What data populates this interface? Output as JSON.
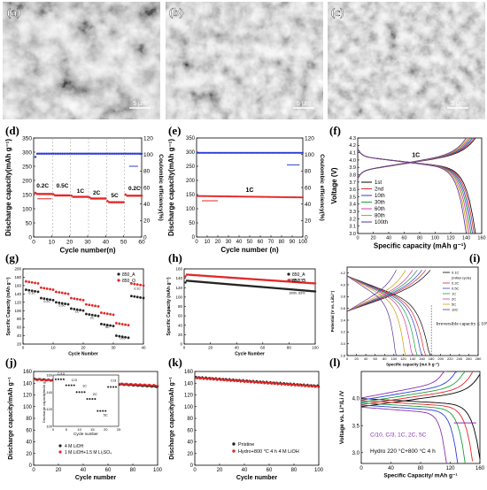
{
  "panels": [
    {
      "label": "(a)",
      "type": "sem-image",
      "scale_bar": "5 μm"
    },
    {
      "label": "(b)",
      "type": "sem-image",
      "scale_bar": "5 μm"
    },
    {
      "label": "(c)",
      "type": "sem-image",
      "scale_bar": "5 μm"
    },
    {
      "label": "(d)"
    },
    {
      "label": "(e)"
    },
    {
      "label": "(f)"
    },
    {
      "label": "(g)"
    },
    {
      "label": "(h)"
    },
    {
      "label": "(i)"
    },
    {
      "label": "(j)"
    },
    {
      "label": "(k)"
    },
    {
      "label": "(l)"
    }
  ],
  "chart_data": [
    {
      "panel": "(d)",
      "type": "scatter",
      "xlabel": "Cycle number(n)",
      "ylabel": "Discharge capacity(mAh g⁻¹)",
      "y2label": "Coulombic efficiency(%)",
      "xlim": [
        0,
        60
      ],
      "ylim": [
        0,
        350
      ],
      "y2lim": [
        0,
        120
      ],
      "xticks": [
        "0",
        "10",
        "20",
        "30",
        "40",
        "50",
        "60"
      ],
      "yticks": [
        "0",
        "50",
        "100",
        "150",
        "200",
        "250",
        "300",
        "350"
      ],
      "y2ticks": [
        "0",
        "20",
        "40",
        "60",
        "80",
        "100",
        "120"
      ],
      "annotations": [
        "0.2C",
        "0.5C",
        "1C",
        "2C",
        "5C",
        "0.2C"
      ],
      "series": [
        {
          "color": "#e32626",
          "segments": [
            {
              "x": [
                1,
                10
              ],
              "y": 152
            },
            {
              "x": [
                11,
                20
              ],
              "y": 147
            },
            {
              "x": [
                21,
                30
              ],
              "y": 142
            },
            {
              "x": [
                31,
                40
              ],
              "y": 136
            },
            {
              "x": [
                41,
                50
              ],
              "y": 123
            },
            {
              "x": [
                51,
                60
              ],
              "y": 146
            }
          ]
        },
        {
          "color": "#2b3fd6",
          "axis": "right",
          "y": 101
        }
      ]
    },
    {
      "panel": "(e)",
      "type": "scatter",
      "xlabel": "Cycle number (n)",
      "ylabel": "Discharge capacity(mAh g⁻¹)",
      "y2label": "Coulombic efficiency(%)",
      "xlim": [
        0,
        100
      ],
      "ylim": [
        0,
        350
      ],
      "y2lim": [
        0,
        120
      ],
      "xticks": [
        "0",
        "10",
        "20",
        "30",
        "40",
        "50",
        "60",
        "70",
        "80",
        "90",
        "100"
      ],
      "yticks": [
        "0",
        "50",
        "100",
        "150",
        "200",
        "250",
        "300",
        "350"
      ],
      "y2ticks": [
        "0",
        "20",
        "40",
        "60",
        "80",
        "100",
        "120"
      ],
      "annotations": [
        "1C"
      ],
      "series": [
        {
          "color": "#e32626",
          "x": [
            1,
            100
          ],
          "y": [
            145,
            140
          ]
        },
        {
          "color": "#2b3fd6",
          "axis": "right",
          "y": 102
        }
      ]
    },
    {
      "panel": "(f)",
      "type": "line",
      "xlabel": "Specific capacity (mAh g⁻¹)",
      "ylabel": "Voltage (V)",
      "xlim": [
        0,
        160
      ],
      "ylim": [
        3.0,
        4.3
      ],
      "xticks": [
        "0",
        "20",
        "40",
        "60",
        "80",
        "100",
        "120",
        "140",
        "160"
      ],
      "yticks": [
        "3.0",
        "3.1",
        "3.2",
        "3.3",
        "3.4",
        "3.5",
        "3.6",
        "3.7",
        "3.8",
        "3.9",
        "4.0",
        "4.1",
        "4.2",
        "4.3"
      ],
      "annotations": [
        "1C"
      ],
      "legend": "left",
      "series": [
        {
          "name": "1st",
          "color": "#000000",
          "capacity": 152
        },
        {
          "name": "2nd",
          "color": "#e32626",
          "capacity": 150
        },
        {
          "name": "10th",
          "color": "#2b3fd6",
          "capacity": 148
        },
        {
          "name": "30th",
          "color": "#1a9e3a",
          "capacity": 146
        },
        {
          "name": "60th",
          "color": "#d63aa8",
          "capacity": 144
        },
        {
          "name": "80th",
          "color": "#c8a000",
          "capacity": 142
        },
        {
          "name": "100th",
          "color": "#5a2fa0",
          "capacity": 140
        }
      ]
    },
    {
      "panel": "(g)",
      "type": "scatter",
      "xlabel": "Cycle Number",
      "ylabel": "Specific Capacity (mAh g⁻¹)",
      "xlim": [
        0,
        40
      ],
      "ylim": [
        20,
        200
      ],
      "xticks": [
        "0",
        "10",
        "20",
        "30",
        "40"
      ],
      "yticks": [
        "20",
        "40",
        "60",
        "80",
        "100",
        "120",
        "140",
        "160",
        "180",
        "200"
      ],
      "legend": "top-right",
      "annotations": [
        "0.1C",
        "0.2C",
        "0.5C",
        "1C",
        "2C",
        "5C",
        "10C",
        "0.1C"
      ],
      "series": [
        {
          "name": "850_A",
          "color": "#222222",
          "values": [
            150,
            130,
            120,
            105,
            92,
            68,
            40,
            135
          ]
        },
        {
          "name": "850_O",
          "color": "#e32626",
          "values": [
            170,
            155,
            145,
            130,
            115,
            95,
            70,
            165
          ]
        }
      ]
    },
    {
      "panel": "(h)",
      "type": "scatter",
      "xlabel": "Cycle Number",
      "ylabel": "Specific Capacity (mAh g⁻¹)",
      "xlim": [
        0,
        100
      ],
      "ylim": [
        0,
        160
      ],
      "xticks": [
        "0",
        "20",
        "40",
        "60",
        "80",
        "100"
      ],
      "yticks": [
        "0",
        "20",
        "40",
        "60",
        "80",
        "100",
        "120",
        "140",
        "160"
      ],
      "legend": "top-right",
      "annotations": [
        "100th, 87%",
        "100th, 83%"
      ],
      "series": [
        {
          "name": "850_A",
          "color": "#222222",
          "x": [
            1,
            100
          ],
          "y": [
            135,
            112
          ]
        },
        {
          "name": "850_O",
          "color": "#e32626",
          "x": [
            1,
            100
          ],
          "y": [
            148,
            129
          ]
        }
      ]
    },
    {
      "panel": "(i)",
      "type": "line",
      "xlabel": "Specific capacity (mA h g⁻¹)",
      "ylabel": "Potential (V vs. Li/Li⁺)",
      "xlim": [
        0,
        280
      ],
      "ylim": [
        2.8,
        4.3
      ],
      "xticks": [
        "0",
        "20",
        "40",
        "60",
        "80",
        "100",
        "120",
        "140",
        "160",
        "180",
        "200",
        "220",
        "240",
        "260",
        "280"
      ],
      "yticks": [
        "2.8",
        "3.0",
        "3.2",
        "3.4",
        "3.6",
        "3.8",
        "4.0",
        "4.2"
      ],
      "annotations": [
        "Irreversible capacity ≤ 10%"
      ],
      "legend": "top-right",
      "series": [
        {
          "name": "0.1C",
          "color": "#000000",
          "capacity": 178
        },
        {
          "name": "(Initial cycle)",
          "color": "#000000",
          "capacity": 0
        },
        {
          "name": "0.2C",
          "color": "#e32626",
          "capacity": 168
        },
        {
          "name": "0.5C",
          "color": "#2b3fd6",
          "capacity": 160
        },
        {
          "name": "1C",
          "color": "#1a9e3a",
          "capacity": 150
        },
        {
          "name": "2C",
          "color": "#d63aa8",
          "capacity": 140
        },
        {
          "name": "5C",
          "color": "#c8a000",
          "capacity": 125
        },
        {
          "name": "10C",
          "color": "#5a2fa0",
          "capacity": 105
        }
      ]
    },
    {
      "panel": "(j)",
      "type": "scatter",
      "xlabel": "Cycle number",
      "ylabel": "Discharge capacity/mAh g⁻¹",
      "xlim": [
        0,
        100
      ],
      "ylim": [
        0,
        160
      ],
      "xticks": [
        "0",
        "20",
        "40",
        "60",
        "80",
        "100"
      ],
      "yticks": [
        "0",
        "20",
        "40",
        "60",
        "80",
        "100",
        "120",
        "140",
        "160"
      ],
      "legend": "bottom-left",
      "series": [
        {
          "name": "4 M LiOH",
          "color": "#222222",
          "x": [
            1,
            100
          ],
          "y": [
            147,
            134
          ]
        },
        {
          "name": "1 M LiOH+1.5 M Li₂SO₄",
          "color": "#e32626",
          "x": [
            1,
            100
          ],
          "y": [
            146,
            136
          ]
        }
      ],
      "inset": {
        "xlabel": "Cycle number",
        "ylabel": "Discharge capacity/mAh g⁻¹",
        "xticks": [
          "0",
          "5",
          "10",
          "15",
          "20",
          "25"
        ],
        "yticks": [
          "100",
          "120",
          "140",
          "160"
        ],
        "annotations": [
          "C/10",
          "C/3",
          "1C",
          "2C",
          "5C",
          "C/3"
        ],
        "values": [
          155,
          148,
          140,
          132,
          118,
          146
        ]
      }
    },
    {
      "panel": "(k)",
      "type": "scatter",
      "xlabel": "Cycle number",
      "ylabel": "Discharge capacity/mAh g⁻¹",
      "xlim": [
        0,
        100
      ],
      "ylim": [
        0,
        160
      ],
      "xticks": [
        "0",
        "20",
        "40",
        "60",
        "80",
        "100"
      ],
      "yticks": [
        "0",
        "20",
        "40",
        "60",
        "80",
        "100",
        "120",
        "140",
        "160"
      ],
      "legend": "bottom-center",
      "series": [
        {
          "name": "Pristine",
          "color": "#222222",
          "x": [
            1,
            100
          ],
          "y": [
            150,
            135
          ]
        },
        {
          "name": "Hydro+800 °C 4 h 4 M LiOH",
          "color": "#e32626",
          "x": [
            1,
            100
          ],
          "y": [
            149,
            134
          ]
        }
      ]
    },
    {
      "panel": "(l)",
      "type": "line",
      "xlabel": "Specific Capacity/ mAh g⁻¹",
      "ylabel": "Voltage vs. Li⁺/Li /V",
      "xlim": [
        0,
        160
      ],
      "ylim": [
        2.8,
        4.5
      ],
      "xticks": [
        "0",
        "40",
        "80",
        "120",
        "160"
      ],
      "yticks": [
        "3.0",
        "3.5",
        "4.0"
      ],
      "annotations": [
        "C/10, C/3, 1C, 2C, 5C",
        "Hydro 220 °C+800 °C 4 h"
      ],
      "series": [
        {
          "color": "#000000",
          "capacity": 160
        },
        {
          "color": "#e32626",
          "capacity": 150
        },
        {
          "color": "#1a9e3a",
          "capacity": 140
        },
        {
          "color": "#2b3fd6",
          "capacity": 130
        },
        {
          "color": "#8a2fb0",
          "capacity": 115
        }
      ]
    }
  ]
}
